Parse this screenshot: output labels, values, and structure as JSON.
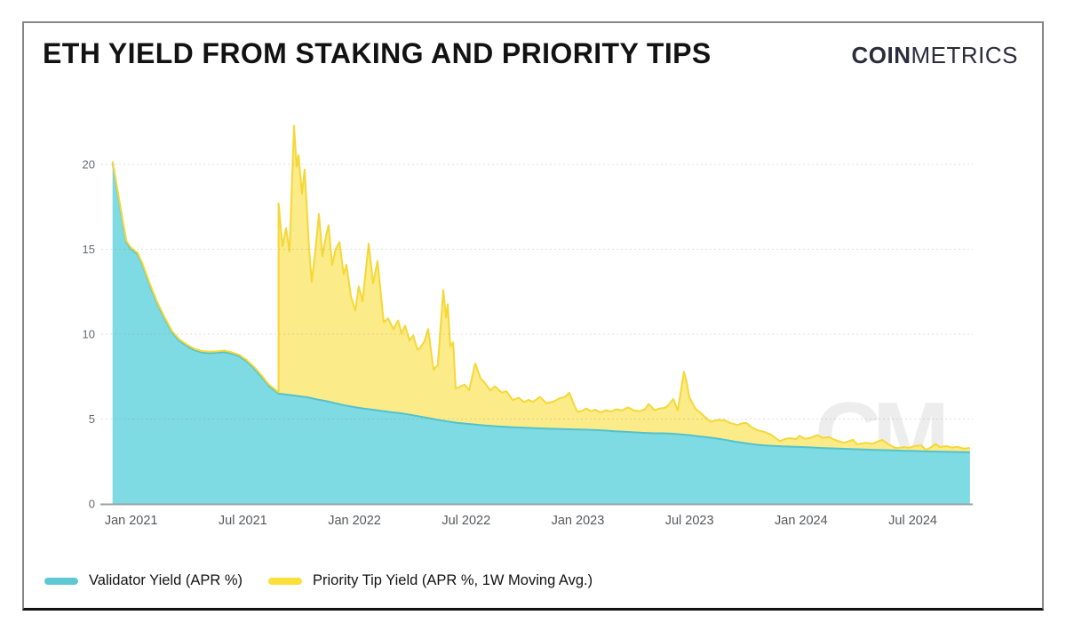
{
  "header": {
    "title": "ETH YIELD FROM STAKING AND PRIORITY TIPS",
    "brand_bold": "COIN",
    "brand_light": "METRICS"
  },
  "watermark": "CM",
  "legend": [
    {
      "label": "Validator Yield (APR %)",
      "color": "#5ec9d5"
    },
    {
      "label": "Priority Tip Yield (APR %, 1W Moving Avg.)",
      "color": "#fbdf3a"
    }
  ],
  "colors": {
    "validator_fill": "#7edae3",
    "validator_stroke": "#53c2cc",
    "tip_fill": "#fbe97c",
    "tip_stroke": "#f5d836",
    "grid": "#8c8c8c",
    "axis_line": "#9ba1a6",
    "y_tick_text": "#666a6e",
    "x_tick_text": "#55585c",
    "watermark": "#ededed"
  },
  "chart_data": {
    "type": "area",
    "stacked": true,
    "title": "ETH YIELD FROM STAKING AND PRIORITY TIPS",
    "x_unit": "months since Dec 2020",
    "x_range": [
      0,
      46.07
    ],
    "y_axis": {
      "ticks": [
        0,
        5,
        10,
        15,
        20
      ],
      "range": [
        0,
        23.5
      ],
      "grid": "dotted"
    },
    "x_axis": {
      "ticks": [
        {
          "t": 1,
          "label": "Jan 2021"
        },
        {
          "t": 7,
          "label": "Jul 2021"
        },
        {
          "t": 13,
          "label": "Jan 2022"
        },
        {
          "t": 19,
          "label": "Jul 2022"
        },
        {
          "t": 25,
          "label": "Jan 2023"
        },
        {
          "t": 31,
          "label": "Jul 2023"
        },
        {
          "t": 37,
          "label": "Jan 2024"
        },
        {
          "t": 43,
          "label": "Jul 2024"
        }
      ]
    },
    "series": [
      {
        "name": "Validator Yield (APR %)",
        "points": [
          [
            0,
            20.1
          ],
          [
            0.3,
            18.2
          ],
          [
            0.55,
            16.6
          ],
          [
            0.75,
            15.4
          ],
          [
            1,
            15.0
          ],
          [
            1.35,
            14.7
          ],
          [
            1.6,
            14.1
          ],
          [
            2,
            12.9
          ],
          [
            2.4,
            11.8
          ],
          [
            2.8,
            10.9
          ],
          [
            3.2,
            10.1
          ],
          [
            3.6,
            9.6
          ],
          [
            4,
            9.3
          ],
          [
            4.4,
            9.05
          ],
          [
            4.8,
            8.92
          ],
          [
            5.2,
            8.88
          ],
          [
            5.6,
            8.9
          ],
          [
            6,
            8.95
          ],
          [
            6.4,
            8.85
          ],
          [
            6.8,
            8.7
          ],
          [
            7.2,
            8.4
          ],
          [
            7.6,
            8.0
          ],
          [
            8,
            7.5
          ],
          [
            8.4,
            6.95
          ],
          [
            8.92,
            6.5
          ],
          [
            9.5,
            6.42
          ],
          [
            10,
            6.35
          ],
          [
            10.5,
            6.28
          ],
          [
            11,
            6.15
          ],
          [
            11.5,
            6.05
          ],
          [
            12,
            5.92
          ],
          [
            12.5,
            5.8
          ],
          [
            13,
            5.7
          ],
          [
            13.5,
            5.62
          ],
          [
            14,
            5.55
          ],
          [
            14.5,
            5.47
          ],
          [
            15,
            5.4
          ],
          [
            15.5,
            5.34
          ],
          [
            16,
            5.25
          ],
          [
            16.5,
            5.15
          ],
          [
            17,
            5.05
          ],
          [
            17.5,
            4.95
          ],
          [
            18,
            4.86
          ],
          [
            18.5,
            4.78
          ],
          [
            19,
            4.72
          ],
          [
            19.5,
            4.67
          ],
          [
            20,
            4.62
          ],
          [
            20.5,
            4.58
          ],
          [
            21,
            4.55
          ],
          [
            21.5,
            4.52
          ],
          [
            22,
            4.5
          ],
          [
            22.5,
            4.47
          ],
          [
            23,
            4.45
          ],
          [
            23.5,
            4.43
          ],
          [
            24,
            4.42
          ],
          [
            24.5,
            4.4
          ],
          [
            25,
            4.38
          ],
          [
            25.5,
            4.37
          ],
          [
            26,
            4.35
          ],
          [
            26.5,
            4.32
          ],
          [
            27,
            4.28
          ],
          [
            27.5,
            4.25
          ],
          [
            28,
            4.22
          ],
          [
            28.5,
            4.19
          ],
          [
            29,
            4.17
          ],
          [
            29.5,
            4.16
          ],
          [
            30,
            4.14
          ],
          [
            30.5,
            4.1
          ],
          [
            31,
            4.05
          ],
          [
            31.5,
            3.98
          ],
          [
            32,
            3.92
          ],
          [
            32.5,
            3.85
          ],
          [
            33,
            3.76
          ],
          [
            33.5,
            3.66
          ],
          [
            34,
            3.58
          ],
          [
            34.5,
            3.5
          ],
          [
            35,
            3.45
          ],
          [
            35.5,
            3.42
          ],
          [
            36,
            3.39
          ],
          [
            36.5,
            3.37
          ],
          [
            37,
            3.35
          ],
          [
            37.5,
            3.33
          ],
          [
            38,
            3.3
          ],
          [
            38.5,
            3.28
          ],
          [
            39,
            3.26
          ],
          [
            39.5,
            3.24
          ],
          [
            40,
            3.22
          ],
          [
            40.5,
            3.2
          ],
          [
            41,
            3.18
          ],
          [
            41.5,
            3.17
          ],
          [
            42,
            3.15
          ],
          [
            42.5,
            3.13
          ],
          [
            43,
            3.12
          ],
          [
            43.5,
            3.1
          ],
          [
            44,
            3.09
          ],
          [
            44.5,
            3.08
          ],
          [
            45,
            3.07
          ],
          [
            45.5,
            3.06
          ],
          [
            46.07,
            3.05
          ]
        ]
      },
      {
        "name": "Priority Tip Yield (APR %, 1W Moving Avg.)",
        "zero_until": 8.92,
        "points": [
          [
            8.92,
            11.2
          ],
          [
            9.13,
            8.7
          ],
          [
            9.32,
            9.8
          ],
          [
            9.51,
            8.45
          ],
          [
            9.75,
            15.9
          ],
          [
            9.89,
            13.5
          ],
          [
            9.99,
            14.2
          ],
          [
            10.18,
            11.95
          ],
          [
            10.32,
            13.4
          ],
          [
            10.56,
            8.85
          ],
          [
            10.7,
            6.85
          ],
          [
            10.9,
            8.8
          ],
          [
            11.09,
            10.95
          ],
          [
            11.28,
            8.5
          ],
          [
            11.47,
            9.75
          ],
          [
            11.61,
            10.4
          ],
          [
            11.8,
            8.1
          ],
          [
            11.99,
            9.1
          ],
          [
            12.19,
            9.55
          ],
          [
            12.42,
            7.7
          ],
          [
            12.57,
            8.3
          ],
          [
            12.81,
            6.5
          ],
          [
            13.04,
            5.7
          ],
          [
            13.23,
            7.15
          ],
          [
            13.43,
            6.3
          ],
          [
            13.76,
            9.75
          ],
          [
            14.0,
            7.45
          ],
          [
            14.24,
            8.8
          ],
          [
            14.57,
            5.25
          ],
          [
            14.81,
            5.5
          ],
          [
            15.1,
            4.9
          ],
          [
            15.34,
            5.45
          ],
          [
            15.53,
            4.7
          ],
          [
            15.72,
            5.2
          ],
          [
            15.96,
            4.35
          ],
          [
            16.15,
            4.7
          ],
          [
            16.39,
            3.9
          ],
          [
            16.53,
            4.05
          ],
          [
            16.77,
            4.5
          ],
          [
            16.96,
            5.25
          ],
          [
            17.25,
            2.9
          ],
          [
            17.48,
            3.25
          ],
          [
            17.77,
            7.7
          ],
          [
            17.92,
            6.1
          ],
          [
            18.01,
            6.9
          ],
          [
            18.15,
            4.45
          ],
          [
            18.3,
            4.7
          ],
          [
            18.44,
            2.0
          ],
          [
            18.68,
            2.15
          ],
          [
            18.92,
            2.3
          ],
          [
            19.16,
            2.0
          ],
          [
            19.49,
            3.6
          ],
          [
            19.78,
            2.75
          ],
          [
            19.97,
            2.55
          ],
          [
            20.3,
            2.1
          ],
          [
            20.54,
            2.35
          ],
          [
            20.92,
            2.0
          ],
          [
            21.16,
            2.1
          ],
          [
            21.5,
            1.6
          ],
          [
            21.83,
            1.75
          ],
          [
            22.12,
            1.5
          ],
          [
            22.35,
            1.65
          ],
          [
            22.59,
            1.55
          ],
          [
            22.97,
            1.85
          ],
          [
            23.3,
            1.5
          ],
          [
            23.69,
            1.6
          ],
          [
            24.02,
            1.8
          ],
          [
            24.31,
            1.9
          ],
          [
            24.55,
            2.15
          ],
          [
            24.78,
            1.5
          ],
          [
            24.98,
            1.05
          ],
          [
            25.22,
            1.1
          ],
          [
            25.45,
            1.25
          ],
          [
            25.69,
            1.1
          ],
          [
            25.93,
            1.2
          ],
          [
            26.22,
            1.05
          ],
          [
            26.51,
            1.2
          ],
          [
            26.79,
            1.15
          ],
          [
            27.08,
            1.3
          ],
          [
            27.37,
            1.25
          ],
          [
            27.7,
            1.45
          ],
          [
            27.99,
            1.3
          ],
          [
            28.32,
            1.25
          ],
          [
            28.61,
            1.4
          ],
          [
            28.8,
            1.7
          ],
          [
            29.13,
            1.35
          ],
          [
            29.37,
            1.45
          ],
          [
            29.66,
            1.5
          ],
          [
            29.85,
            1.65
          ],
          [
            30.13,
            2.05
          ],
          [
            30.37,
            1.4
          ],
          [
            30.56,
            2.7
          ],
          [
            30.7,
            3.7
          ],
          [
            30.85,
            3.1
          ],
          [
            30.99,
            2.25
          ],
          [
            31.32,
            1.6
          ],
          [
            31.66,
            1.35
          ],
          [
            31.8,
            1.2
          ],
          [
            32.13,
            0.95
          ],
          [
            32.28,
            1.0
          ],
          [
            32.52,
            1.1
          ],
          [
            32.9,
            1.15
          ],
          [
            33.19,
            1.05
          ],
          [
            33.57,
            1.0
          ],
          [
            33.86,
            1.15
          ],
          [
            34.05,
            1.2
          ],
          [
            34.33,
            1.0
          ],
          [
            34.67,
            0.85
          ],
          [
            35.0,
            0.8
          ],
          [
            35.38,
            0.65
          ],
          [
            35.86,
            0.3
          ],
          [
            36.15,
            0.45
          ],
          [
            36.43,
            0.5
          ],
          [
            36.72,
            0.45
          ],
          [
            36.91,
            0.65
          ],
          [
            37.2,
            0.5
          ],
          [
            37.48,
            0.55
          ],
          [
            37.86,
            0.75
          ],
          [
            38.15,
            0.6
          ],
          [
            38.49,
            0.65
          ],
          [
            38.82,
            0.5
          ],
          [
            39.3,
            0.35
          ],
          [
            39.54,
            0.45
          ],
          [
            39.78,
            0.55
          ],
          [
            40.01,
            0.3
          ],
          [
            40.25,
            0.35
          ],
          [
            40.49,
            0.4
          ],
          [
            40.83,
            0.35
          ],
          [
            41.11,
            0.5
          ],
          [
            41.35,
            0.6
          ],
          [
            41.69,
            0.35
          ],
          [
            42.07,
            0.15
          ],
          [
            42.31,
            0.17
          ],
          [
            42.5,
            0.22
          ],
          [
            42.78,
            0.18
          ],
          [
            43.12,
            0.3
          ],
          [
            43.45,
            0.35
          ],
          [
            43.69,
            0.1
          ],
          [
            43.93,
            0.2
          ],
          [
            44.21,
            0.45
          ],
          [
            44.45,
            0.27
          ],
          [
            44.79,
            0.33
          ],
          [
            45.12,
            0.25
          ],
          [
            45.41,
            0.3
          ],
          [
            45.74,
            0.2
          ],
          [
            46.07,
            0.25
          ]
        ]
      }
    ]
  }
}
